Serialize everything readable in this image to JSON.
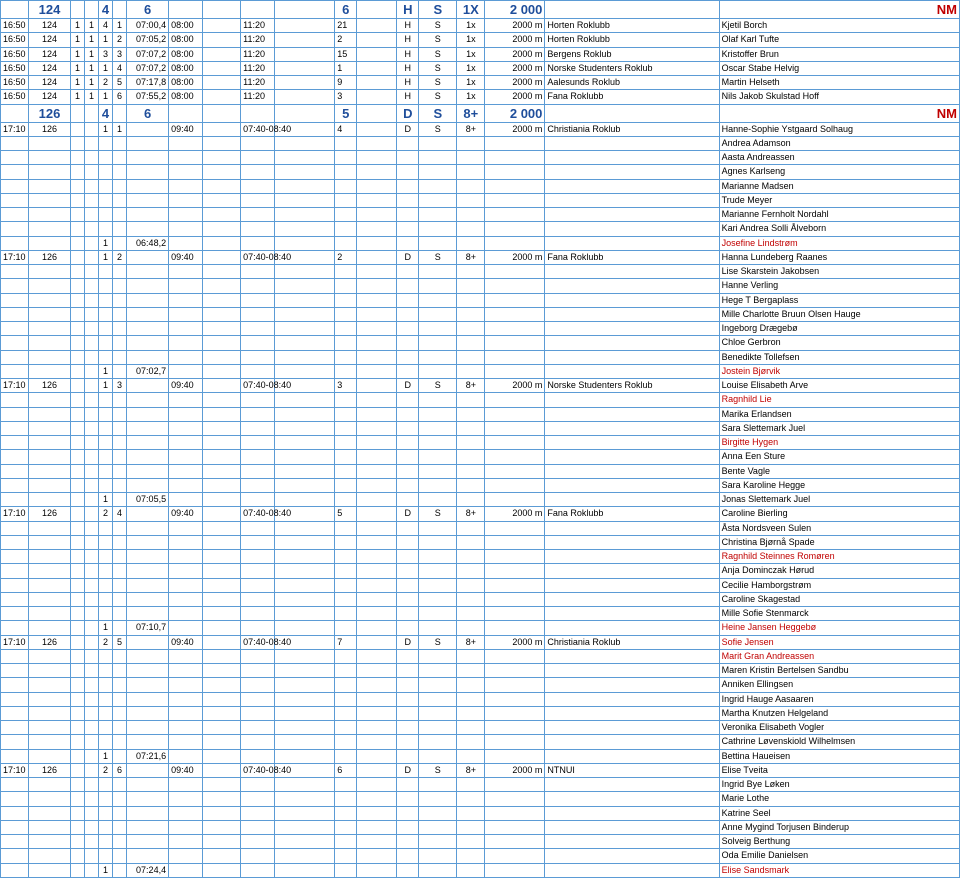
{
  "colors": {
    "border": "#5b9bd5",
    "header_text": "#1f4e9b",
    "nm_text": "#c00000",
    "red_name": "#c00000",
    "background": "#ffffff"
  },
  "headers": [
    {
      "race": "124",
      "a": "",
      "b": "",
      "c": "4",
      "d": "",
      "split": "6",
      "cat1": "",
      "cat2": "",
      "e": "",
      "lane": "6",
      "f": "",
      "g1": "H",
      "g2": "S",
      "boat": "1X",
      "dist": "2 000",
      "nm": "NM"
    },
    {
      "race": "126",
      "a": "",
      "b": "",
      "c": "4",
      "d": "",
      "split": "6",
      "cat1": "",
      "cat2": "",
      "e": "",
      "lane": "5",
      "f": "",
      "g1": "D",
      "g2": "S",
      "boat": "8+",
      "dist": "2 000",
      "nm": "NM"
    }
  ],
  "rows124": [
    {
      "time": "16:50",
      "race": "124",
      "a": "1",
      "b": "1",
      "c": "4",
      "d": "1",
      "split": "07:00,4",
      "t1": "08:00",
      "t2": "11:20",
      "lane": "21",
      "g1": "H",
      "g2": "S",
      "boat": "1x",
      "dist": "2000 m",
      "club": "Horten Roklubb",
      "names": [
        [
          "Kjetil Borch",
          false
        ]
      ]
    },
    {
      "time": "16:50",
      "race": "124",
      "a": "1",
      "b": "1",
      "c": "1",
      "d": "2",
      "split": "07:05,2",
      "t1": "08:00",
      "t2": "11:20",
      "lane": "2",
      "g1": "H",
      "g2": "S",
      "boat": "1x",
      "dist": "2000 m",
      "club": "Horten Roklubb",
      "names": [
        [
          "Olaf Karl Tufte",
          false
        ]
      ]
    },
    {
      "time": "16:50",
      "race": "124",
      "a": "1",
      "b": "1",
      "c": "3",
      "d": "3",
      "split": "07:07,2",
      "t1": "08:00",
      "t2": "11:20",
      "lane": "15",
      "g1": "H",
      "g2": "S",
      "boat": "1x",
      "dist": "2000 m",
      "club": "Bergens Roklub",
      "names": [
        [
          "Kristoffer Brun",
          false
        ]
      ]
    },
    {
      "time": "16:50",
      "race": "124",
      "a": "1",
      "b": "1",
      "c": "1",
      "d": "4",
      "split": "07:07,2",
      "t1": "08:00",
      "t2": "11:20",
      "lane": "1",
      "g1": "H",
      "g2": "S",
      "boat": "1x",
      "dist": "2000 m",
      "club": "Norske Studenters Roklub",
      "names": [
        [
          "Oscar Stabe Helvig",
          false
        ]
      ]
    },
    {
      "time": "16:50",
      "race": "124",
      "a": "1",
      "b": "1",
      "c": "2",
      "d": "5",
      "split": "07:17,8",
      "t1": "08:00",
      "t2": "11:20",
      "lane": "9",
      "g1": "H",
      "g2": "S",
      "boat": "1x",
      "dist": "2000 m",
      "club": "Aalesunds Roklub",
      "names": [
        [
          "Martin Helseth",
          false
        ]
      ]
    },
    {
      "time": "16:50",
      "race": "124",
      "a": "1",
      "b": "1",
      "c": "1",
      "d": "6",
      "split": "07:55,2",
      "t1": "08:00",
      "t2": "11:20",
      "lane": "3",
      "g1": "H",
      "g2": "S",
      "boat": "1x",
      "dist": "2000 m",
      "club": "Fana Roklubb",
      "names": [
        [
          "Nils Jakob Skulstad Hoff",
          false
        ]
      ]
    }
  ],
  "rows126": [
    {
      "time": "17:10",
      "race": "126",
      "a": "",
      "b": "",
      "c": "1",
      "d": "1",
      "split": "",
      "t1": "09:40",
      "t2": "07:40-08:40",
      "lane": "4",
      "g1": "D",
      "g2": "S",
      "boat": "8+",
      "dist": "2000 m",
      "club": "Christiania Roklub",
      "bottom_c": "1",
      "bottom_split": "06:48,2",
      "names": [
        [
          "Hanne-Sophie Ystgaard Solhaug",
          false
        ],
        [
          "Andrea Adamson",
          false
        ],
        [
          "Aasta Andreassen",
          false
        ],
        [
          "Agnes Karlseng",
          false
        ],
        [
          "Marianne Madsen",
          false
        ],
        [
          "Trude Meyer",
          false
        ],
        [
          "Marianne Fernholt Nordahl",
          false
        ],
        [
          "Kari Andrea Solli Ålveborn",
          false
        ],
        [
          "Josefine Lindstrøm",
          true
        ]
      ]
    },
    {
      "time": "17:10",
      "race": "126",
      "a": "",
      "b": "",
      "c": "1",
      "d": "2",
      "split": "",
      "t1": "09:40",
      "t2": "07:40-08:40",
      "lane": "2",
      "g1": "D",
      "g2": "S",
      "boat": "8+",
      "dist": "2000 m",
      "club": "Fana Roklubb",
      "bottom_c": "1",
      "bottom_split": "07:02,7",
      "names": [
        [
          "Hanna Lundeberg Raanes",
          false
        ],
        [
          "Lise Skarstein Jakobsen",
          false
        ],
        [
          "Hanne Verling",
          false
        ],
        [
          "Hege T Bergaplass",
          false
        ],
        [
          "Mille Charlotte Bruun Olsen Hauge",
          false
        ],
        [
          "Ingeborg Drægebø",
          false
        ],
        [
          "Chloe Gerbron",
          false
        ],
        [
          "Benedikte Tollefsen",
          false
        ],
        [
          "Jostein Bjørvik",
          true
        ]
      ]
    },
    {
      "time": "17:10",
      "race": "126",
      "a": "",
      "b": "",
      "c": "1",
      "d": "3",
      "split": "",
      "t1": "09:40",
      "t2": "07:40-08:40",
      "lane": "3",
      "g1": "D",
      "g2": "S",
      "boat": "8+",
      "dist": "2000 m",
      "club": "Norske Studenters Roklub",
      "bottom_c": "1",
      "bottom_split": "07:05,5",
      "names": [
        [
          "Louise Elisabeth Arve",
          false
        ],
        [
          "Ragnhild Lie",
          true
        ],
        [
          "Marika Erlandsen",
          false
        ],
        [
          "Sara Slettemark Juel",
          false
        ],
        [
          "Birgitte Hygen",
          true
        ],
        [
          "Anna Een Sture",
          false
        ],
        [
          "Bente Vagle",
          false
        ],
        [
          "Sara Karoline Hegge",
          false
        ],
        [
          "Jonas Slettemark Juel",
          false
        ]
      ]
    },
    {
      "time": "17:10",
      "race": "126",
      "a": "",
      "b": "",
      "c": "2",
      "d": "4",
      "split": "",
      "t1": "09:40",
      "t2": "07:40-08:40",
      "lane": "5",
      "g1": "D",
      "g2": "S",
      "boat": "8+",
      "dist": "2000 m",
      "club": "Fana Roklubb",
      "bottom_c": "1",
      "bottom_split": "07:10,7",
      "names": [
        [
          "Caroline Bierling",
          false
        ],
        [
          "Åsta Nordsveen Sulen",
          false
        ],
        [
          "Christina Bjørnå Spade",
          false
        ],
        [
          "Ragnhild Steinnes Romøren",
          true
        ],
        [
          "Anja Dominczak Hørud",
          false
        ],
        [
          "Cecilie Hamborgstrøm",
          false
        ],
        [
          "Caroline Skagestad",
          false
        ],
        [
          "Mille Sofie Stenmarck",
          false
        ],
        [
          "Heine Jansen Heggebø",
          true
        ]
      ]
    },
    {
      "time": "17:10",
      "race": "126",
      "a": "",
      "b": "",
      "c": "2",
      "d": "5",
      "split": "",
      "t1": "09:40",
      "t2": "07:40-08:40",
      "lane": "7",
      "g1": "D",
      "g2": "S",
      "boat": "8+",
      "dist": "2000 m",
      "club": "Christiania Roklub",
      "bottom_c": "1",
      "bottom_split": "07:21,6",
      "names": [
        [
          "Sofie Jensen",
          true
        ],
        [
          "Marit Gran Andreassen",
          true
        ],
        [
          "Maren Kristin Bertelsen Sandbu",
          false
        ],
        [
          "Anniken Ellingsen",
          false
        ],
        [
          "Ingrid Hauge Aasaaren",
          false
        ],
        [
          "Martha Knutzen Helgeland",
          false
        ],
        [
          "Veronika Elisabeth Vogler",
          false
        ],
        [
          "Cathrine Løvenskiold Wilhelmsen",
          false
        ],
        [
          "Bettina Haueisen",
          false
        ]
      ]
    },
    {
      "time": "17:10",
      "race": "126",
      "a": "",
      "b": "",
      "c": "2",
      "d": "6",
      "split": "",
      "t1": "09:40",
      "t2": "07:40-08:40",
      "lane": "6",
      "g1": "D",
      "g2": "S",
      "boat": "8+",
      "dist": "2000 m",
      "club": "NTNUI",
      "bottom_c": "1",
      "bottom_split": "07:24,4",
      "names": [
        [
          "Elise Tveita",
          false
        ],
        [
          "Ingrid Bye Løken",
          false
        ],
        [
          "Marie Lothe",
          false
        ],
        [
          "Katrine Seel",
          false
        ],
        [
          "Anne Mygind Torjusen Binderup",
          false
        ],
        [
          "Solveig Berthung",
          false
        ],
        [
          "Oda Emilie Danielsen",
          false
        ],
        [
          "Elise Sandsmark",
          true
        ]
      ]
    }
  ]
}
